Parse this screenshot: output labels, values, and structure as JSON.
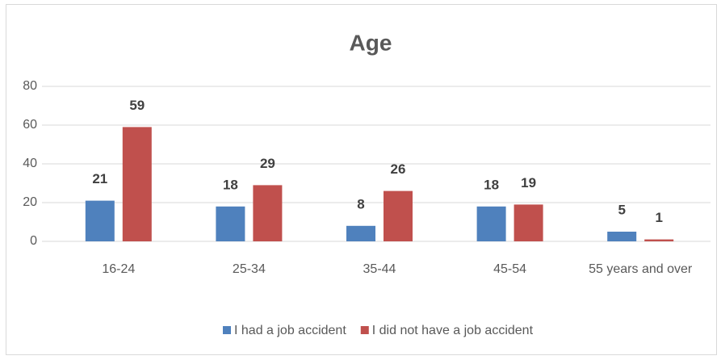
{
  "chart_data": {
    "type": "bar",
    "title": "Age",
    "categories": [
      "16-24",
      "25-34",
      "35-44",
      "45-54",
      "55 years and over"
    ],
    "series": [
      {
        "name": "I had a job accident",
        "color": "#4f81bd",
        "values": [
          21,
          18,
          8,
          18,
          5
        ]
      },
      {
        "name": "I did not have a job accident",
        "color": "#c0504d",
        "values": [
          59,
          29,
          26,
          19,
          1
        ]
      }
    ],
    "ylim": [
      0,
      80
    ],
    "yticks": [
      0,
      20,
      40,
      60,
      80
    ],
    "grid": true,
    "legend": "bottom"
  }
}
